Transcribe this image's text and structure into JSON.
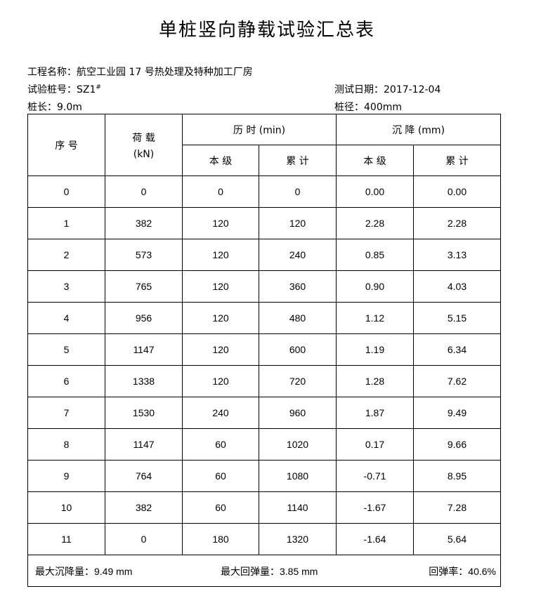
{
  "title": "单桩竖向静载试验汇总表",
  "info": {
    "project": "工程名称：航空工业园 17 号热处理及特种加工厂房",
    "pile_no_label": "试验桩号：SZ1",
    "pile_no_mark": "#",
    "test_date": "测试日期：2017-12-04",
    "pile_length": "桩长：9.0m",
    "pile_diameter": "桩径：400mm"
  },
  "table": {
    "headers": {
      "index": "序 号",
      "load": "荷 载",
      "load_unit": "(kN)",
      "time": "历 时 (min)",
      "settlement": "沉 降 (mm)",
      "this_level": "本 级",
      "cumulative": "累 计"
    },
    "rows": [
      [
        "0",
        "0",
        "0",
        "0",
        "0.00",
        "0.00"
      ],
      [
        "1",
        "382",
        "120",
        "120",
        "2.28",
        "2.28"
      ],
      [
        "2",
        "573",
        "120",
        "240",
        "0.85",
        "3.13"
      ],
      [
        "3",
        "765",
        "120",
        "360",
        "0.90",
        "4.03"
      ],
      [
        "4",
        "956",
        "120",
        "480",
        "1.12",
        "5.15"
      ],
      [
        "5",
        "1147",
        "120",
        "600",
        "1.19",
        "6.34"
      ],
      [
        "6",
        "1338",
        "120",
        "720",
        "1.28",
        "7.62"
      ],
      [
        "7",
        "1530",
        "240",
        "960",
        "1.87",
        "9.49"
      ],
      [
        "8",
        "1147",
        "60",
        "1020",
        "0.17",
        "9.66"
      ],
      [
        "9",
        "764",
        "60",
        "1080",
        "-0.71",
        "8.95"
      ],
      [
        "10",
        "382",
        "60",
        "1140",
        "-1.67",
        "7.28"
      ],
      [
        "11",
        "0",
        "180",
        "1320",
        "-1.64",
        "5.64"
      ]
    ],
    "footer": {
      "max_settlement": "最大沉降量：9.49 mm",
      "max_rebound": "最大回弹量：3.85 mm",
      "rebound_rate": "回弹率：40.6%"
    }
  }
}
